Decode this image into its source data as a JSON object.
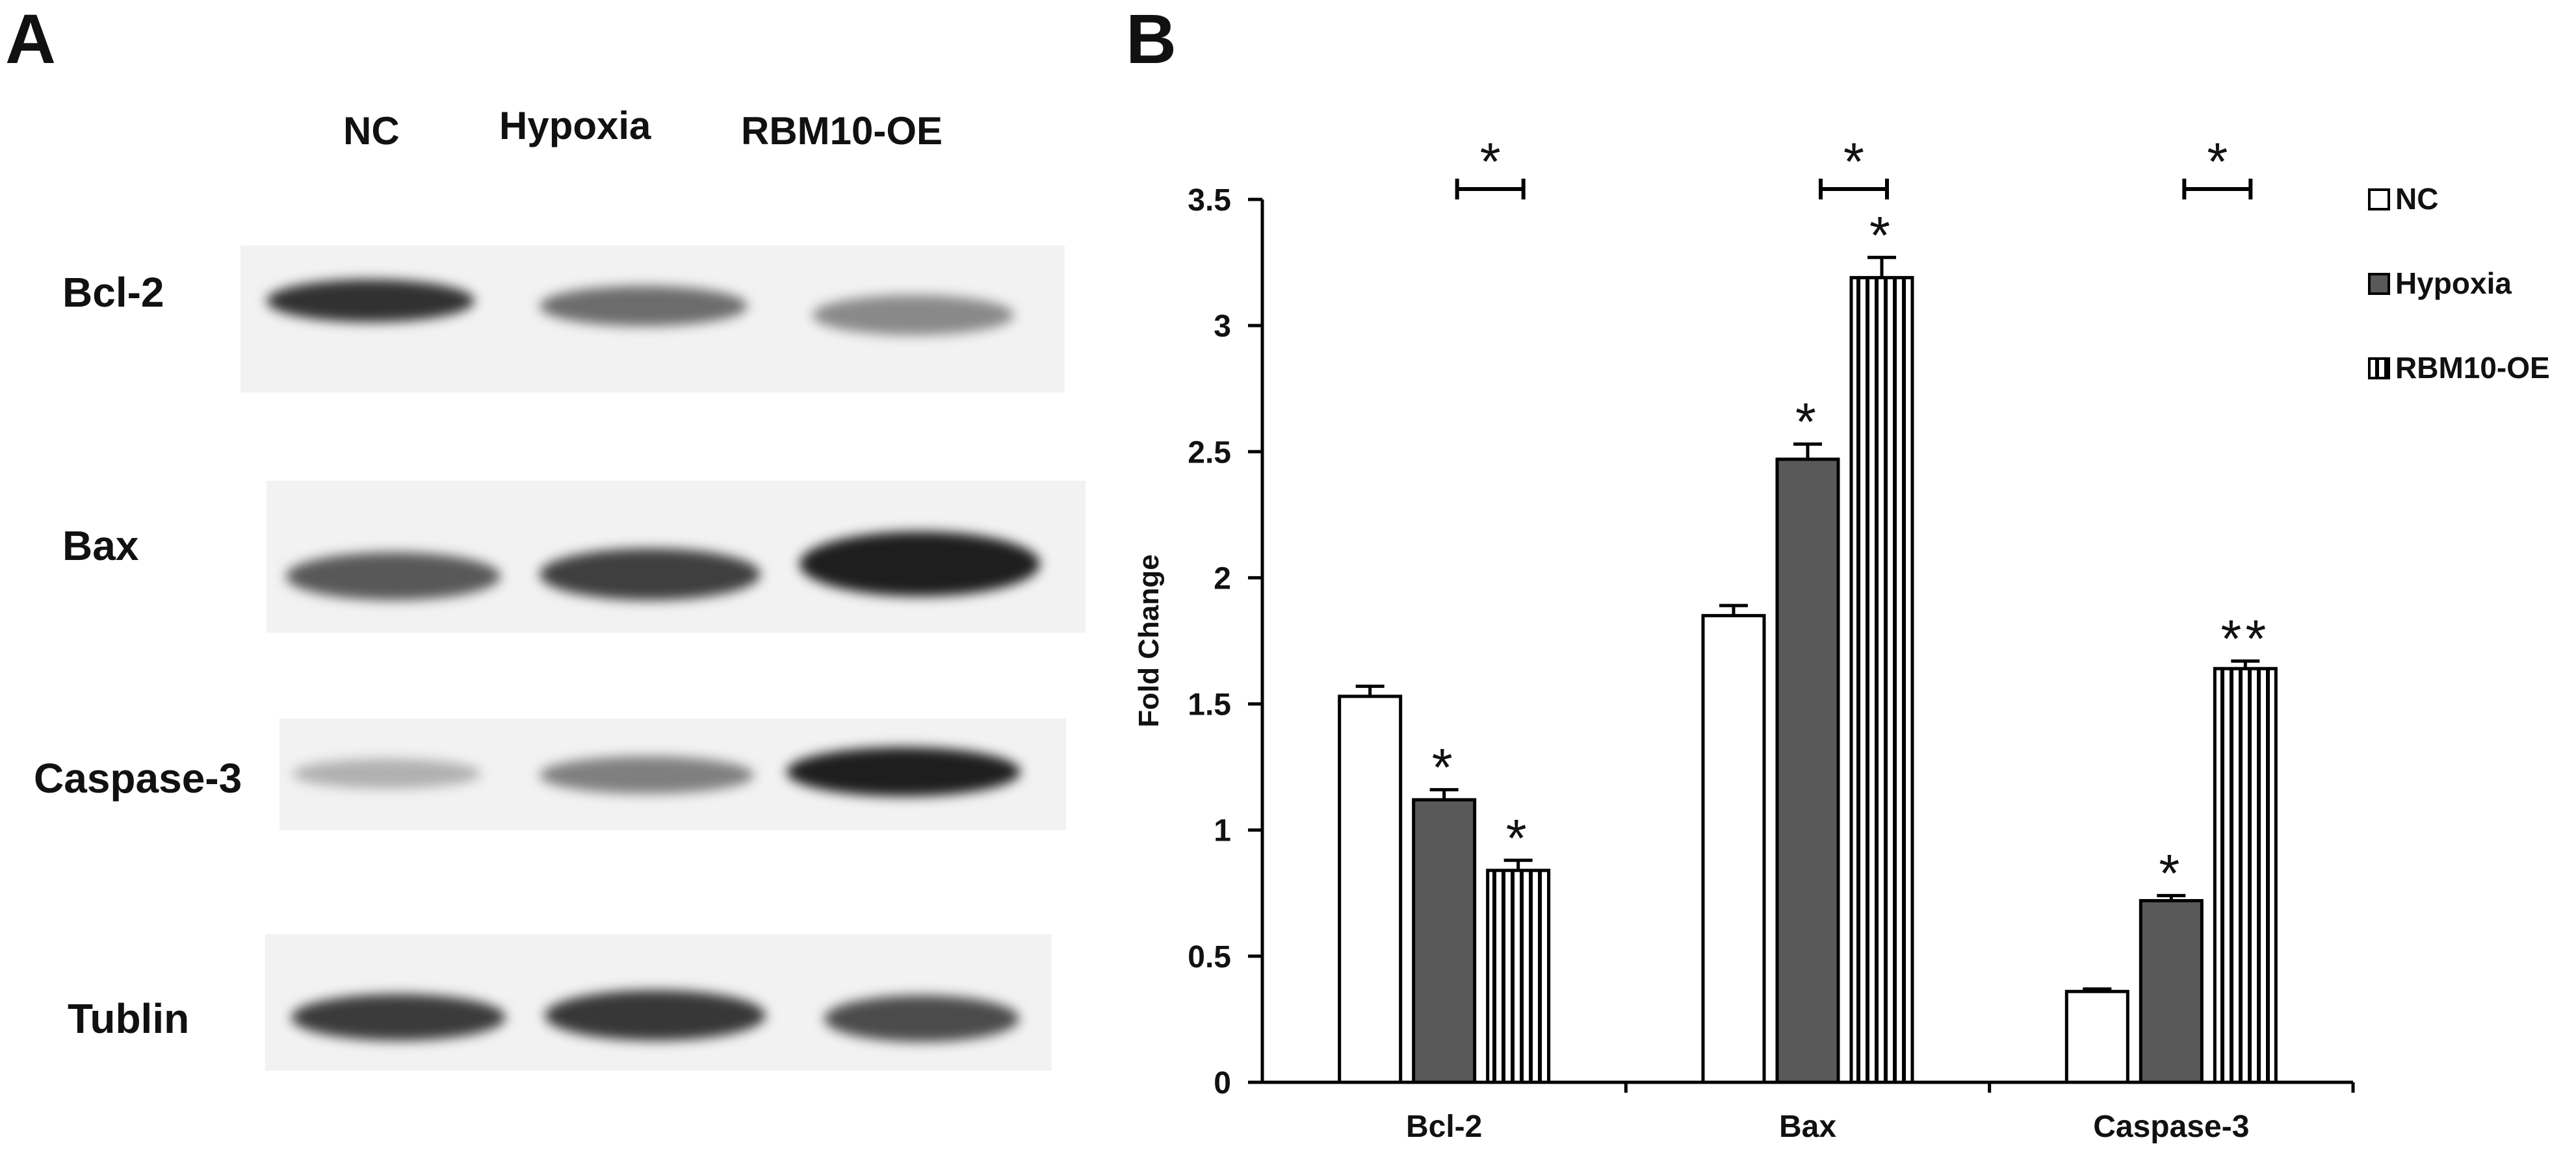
{
  "panel_a": {
    "letter": "A",
    "lanes": [
      "NC",
      "Hypoxia",
      "RBM10-OE"
    ],
    "rows": [
      {
        "label": "Bcl-2",
        "intensities": [
          0.85,
          0.55,
          0.4
        ]
      },
      {
        "label": "Bax",
        "intensities": [
          0.65,
          0.78,
          0.95
        ]
      },
      {
        "label": "Caspase-3",
        "intensities": [
          0.2,
          0.45,
          0.95
        ]
      },
      {
        "label": "Tublin",
        "intensities": [
          0.8,
          0.82,
          0.72
        ]
      }
    ]
  },
  "panel_b": {
    "letter": "B"
  },
  "chart_data": {
    "type": "bar",
    "title": "",
    "xlabel": "",
    "ylabel": "Fold Change",
    "ylim": [
      0,
      3.5
    ],
    "yticks": [
      0,
      0.5,
      1,
      1.5,
      2,
      2.5,
      3,
      3.5
    ],
    "ytick_labels": [
      "0",
      "0.5",
      "1",
      "1.5",
      "2",
      "2.5",
      "3",
      "3.5"
    ],
    "categories": [
      "Bcl-2",
      "Bax",
      "Caspase-3"
    ],
    "series": [
      {
        "name": "NC",
        "values": [
          1.53,
          1.85,
          0.36
        ],
        "errors": [
          0.04,
          0.04,
          0.01
        ],
        "marks": [
          "",
          "",
          ""
        ],
        "fill": "#ffffff",
        "pattern": "none"
      },
      {
        "name": "Hypoxia",
        "values": [
          1.12,
          2.47,
          0.72
        ],
        "errors": [
          0.04,
          0.06,
          0.02
        ],
        "marks": [
          "*",
          "*",
          "*"
        ],
        "fill": "#595959",
        "pattern": "none"
      },
      {
        "name": "RBM10-OE",
        "values": [
          0.84,
          3.19,
          1.64
        ],
        "errors": [
          0.04,
          0.08,
          0.03
        ],
        "marks": [
          "*",
          "*",
          "**"
        ],
        "fill": "#ffffff",
        "pattern": "vertical-stripes"
      }
    ],
    "comparison_brackets": [
      {
        "category": "Bcl-2",
        "between": [
          "Hypoxia",
          "RBM10-OE"
        ],
        "label": "*"
      },
      {
        "category": "Bax",
        "between": [
          "Hypoxia",
          "RBM10-OE"
        ],
        "label": "*"
      },
      {
        "category": "Caspase-3",
        "between": [
          "Hypoxia",
          "RBM10-OE"
        ],
        "label": "*"
      }
    ],
    "legend": {
      "position": "right",
      "entries": [
        "NC",
        "Hypoxia",
        "RBM10-OE"
      ]
    },
    "grid": false,
    "colors": {
      "axis": "#000000",
      "dark_bar": "#595959",
      "stripe": "#000000"
    }
  }
}
